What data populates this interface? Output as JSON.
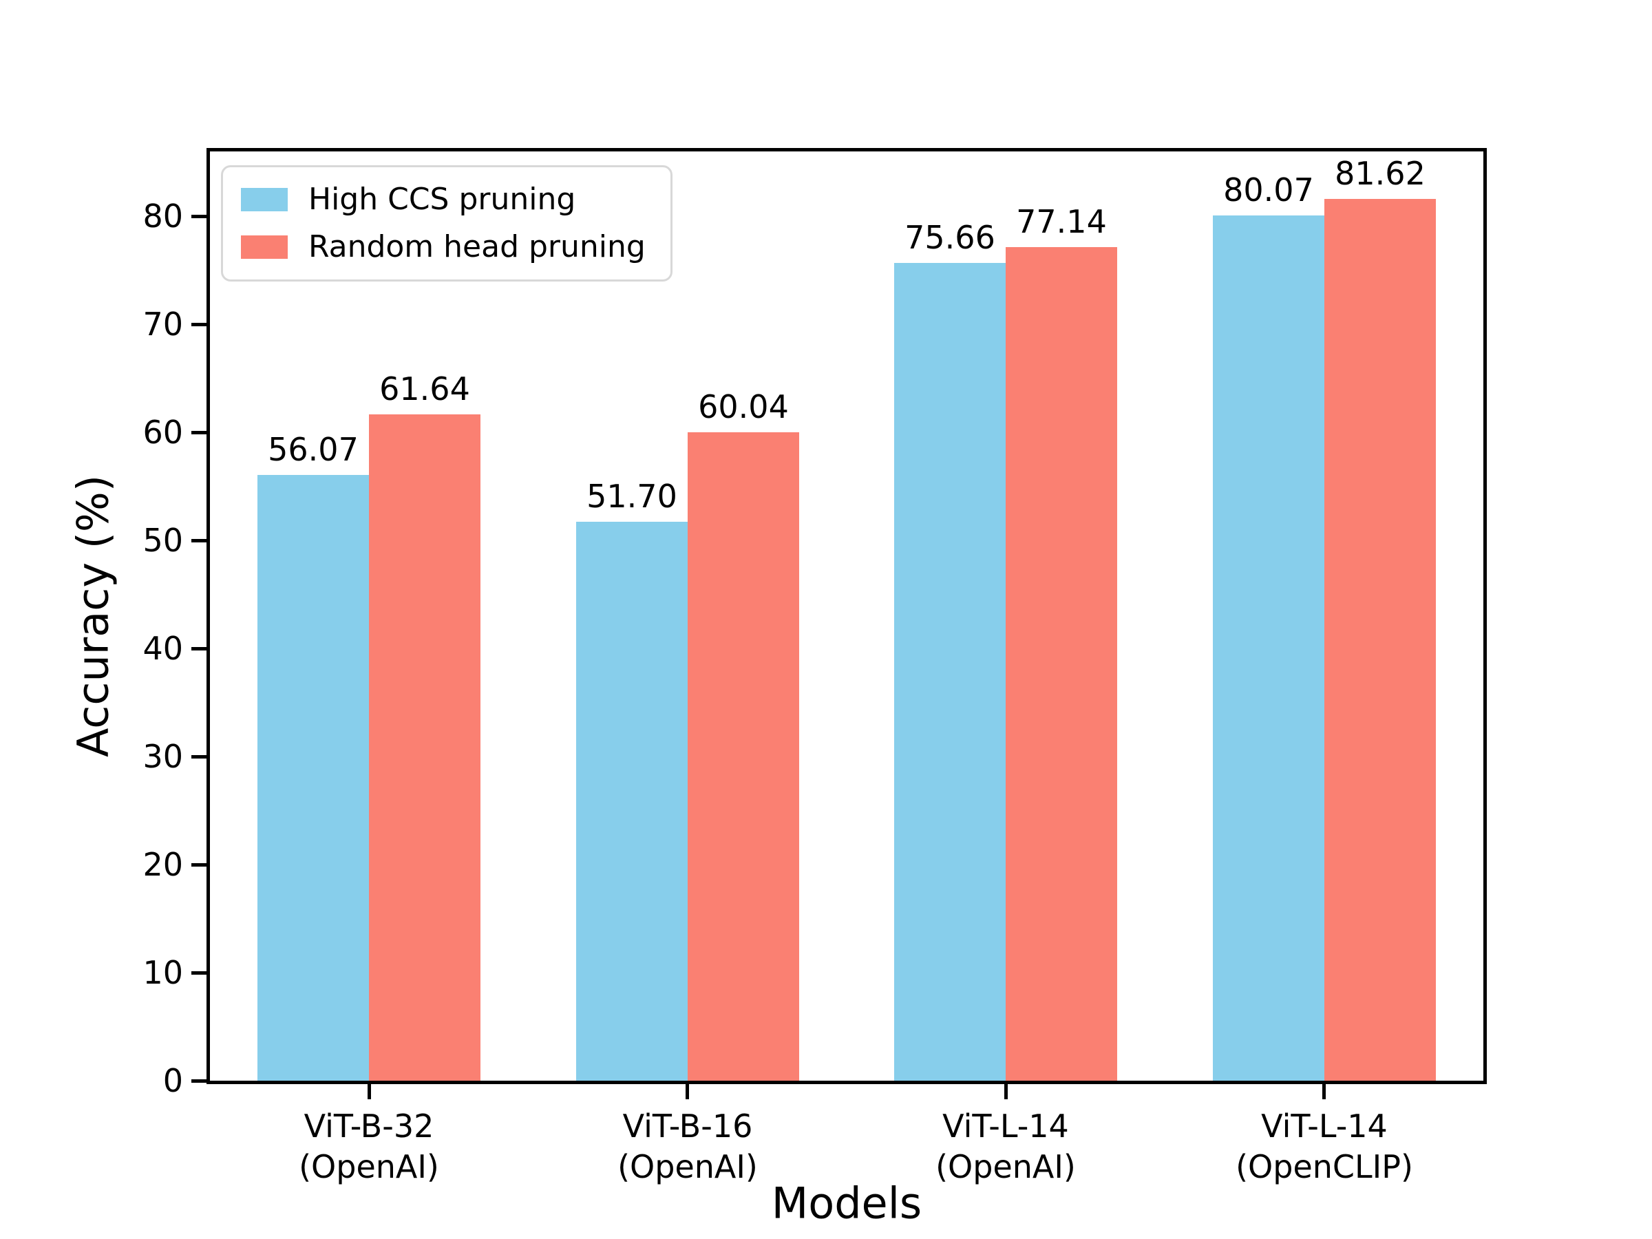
{
  "chart_data": {
    "type": "bar",
    "title": "",
    "xlabel": "Models",
    "ylabel": "Accuracy (%)",
    "ylim": [
      0,
      86
    ],
    "yticks": [
      0,
      10,
      20,
      30,
      40,
      50,
      60,
      70,
      80
    ],
    "grid": false,
    "legend_position": "upper left",
    "bar_value_labels": true,
    "categories": [
      [
        "ViT-B-32",
        "(OpenAI)"
      ],
      [
        "ViT-B-16",
        "(OpenAI)"
      ],
      [
        "ViT-L-14",
        "(OpenAI)"
      ],
      [
        "ViT-L-14",
        "(OpenCLIP)"
      ]
    ],
    "series": [
      {
        "name": "High CCS pruning",
        "color": "#87CEEB",
        "values": [
          56.07,
          51.7,
          75.66,
          80.07
        ],
        "value_labels": [
          "56.07",
          "51.70",
          "75.66",
          "80.07"
        ]
      },
      {
        "name": "Random head pruning",
        "color": "#FA8072",
        "values": [
          61.64,
          60.04,
          77.14,
          81.62
        ],
        "value_labels": [
          "61.64",
          "60.04",
          "77.14",
          "81.62"
        ]
      }
    ],
    "axis_color": "#000000",
    "background_color": "#ffffff"
  }
}
